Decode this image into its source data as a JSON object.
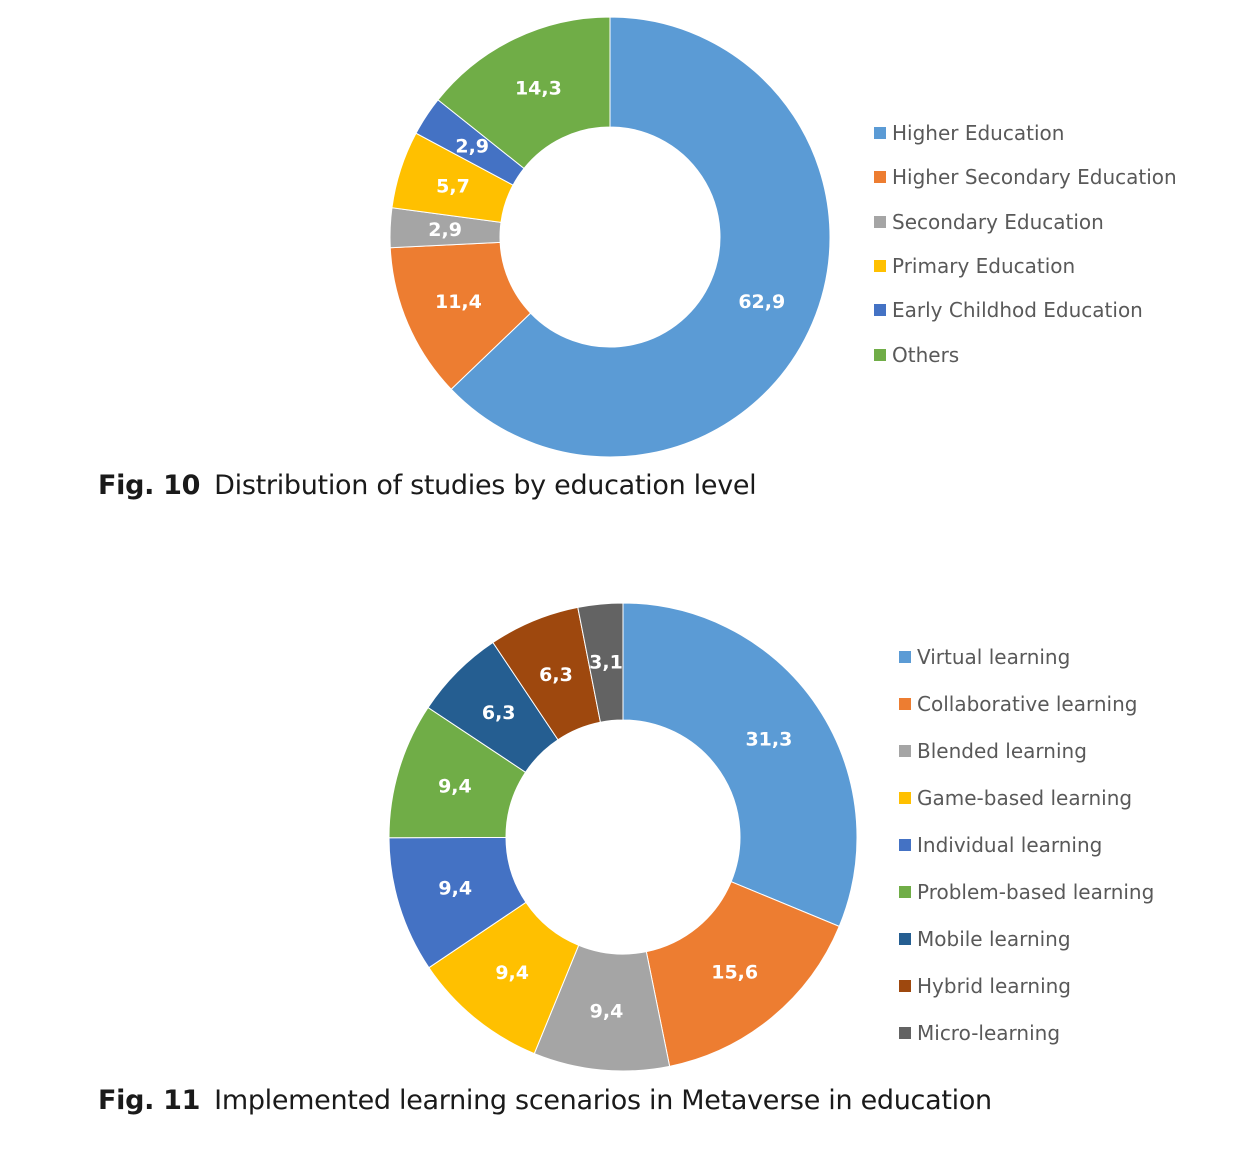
{
  "chart_data": [
    {
      "type": "pie",
      "donut": true,
      "caption_number": "Fig. 10",
      "caption_text": "Distribution of studies by education level",
      "legend_position": "right",
      "categories": [
        "Higher Education",
        "Higher Secondary Education",
        "Secondary Education",
        "Primary Education",
        "Early Childhod Education",
        "Others"
      ],
      "values": [
        62.9,
        11.4,
        2.9,
        5.7,
        2.9,
        14.3
      ],
      "labels": [
        "62,9",
        "11,4",
        "2,9",
        "5,7",
        "2,9",
        "14,3"
      ],
      "colors": [
        "#5b9bd5",
        "#ed7d31",
        "#a5a5a5",
        "#ffc000",
        "#4472c4",
        "#70ad47"
      ]
    },
    {
      "type": "pie",
      "donut": true,
      "caption_number": "Fig. 11",
      "caption_text": "Implemented learning scenarios in Metaverse in education",
      "legend_position": "right",
      "categories": [
        "Virtual learning",
        "Collaborative learning",
        "Blended learning",
        "Game-based learning",
        "Individual learning",
        "Problem-based learning",
        "Mobile learning",
        "Hybrid learning",
        "Micro-learning"
      ],
      "values": [
        31.3,
        15.6,
        9.4,
        9.4,
        9.4,
        9.4,
        6.3,
        6.3,
        3.1
      ],
      "labels": [
        "31,3",
        "15,6",
        "9,4",
        "9,4",
        "9,4",
        "9,4",
        "6,3",
        "6,3",
        "3,1"
      ],
      "colors": [
        "#5b9bd5",
        "#ed7d31",
        "#a5a5a5",
        "#ffc000",
        "#4472c4",
        "#70ad47",
        "#255e91",
        "#9e480e",
        "#636363"
      ]
    }
  ]
}
